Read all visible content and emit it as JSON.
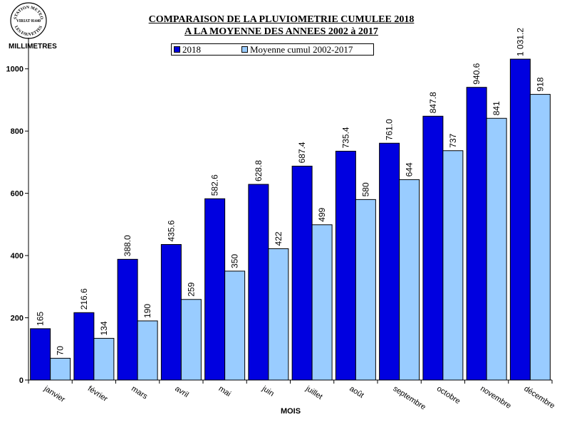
{
  "stamp": {
    "top": "STATION METEO",
    "middle": "VIRIAT 01440",
    "bottom": "LES FAUVETTES"
  },
  "chart_data": {
    "type": "bar",
    "title": "COMPARAISON DE LA PLUVIOMETRIE CUMULEE 2018",
    "subtitle": "A LA MOYENNE DES ANNEES 2002 à 2017",
    "ylabel": "MILLIMETRES",
    "xlabel": "MOIS",
    "categories": [
      "janvier",
      "février",
      "mars",
      "avril",
      "mai",
      "juin",
      "juillet",
      "août",
      "septembre",
      "octobre",
      "novembre",
      "décembre"
    ],
    "series": [
      {
        "name": "2018",
        "color": "#0000E0",
        "values": [
          165,
          216.6,
          388.0,
          435.6,
          582.6,
          628.8,
          687.4,
          735.4,
          761.0,
          847.8,
          940.6,
          1031.2
        ],
        "labels": [
          "165",
          "216.6",
          "388.0",
          "435.6",
          "582.6",
          "628.8",
          "687.4",
          "735.4",
          "761.0",
          "847.8",
          "940.6",
          "1 031.2"
        ]
      },
      {
        "name": "Moyenne cumul 2002-2017",
        "color": "#99CCFF",
        "values": [
          70,
          134,
          190,
          259,
          350,
          422,
          499,
          580,
          644,
          737,
          841,
          918
        ],
        "labels": [
          "70",
          "134",
          "190",
          "259",
          "350",
          "422",
          "499",
          "580",
          "644",
          "737",
          "841",
          "918"
        ]
      }
    ],
    "ylim": [
      0,
      1100
    ],
    "yticks": [
      0,
      200,
      400,
      600,
      800,
      1000
    ],
    "grid": false,
    "legend": "top-center"
  }
}
